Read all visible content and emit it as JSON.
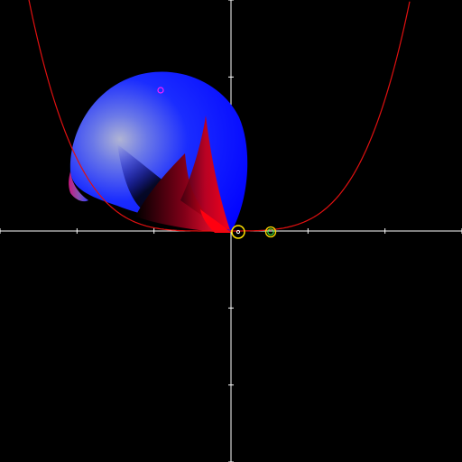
{
  "colors": {
    "background": "#000000",
    "axes": "#ffffff",
    "curve": "#e01010",
    "shape_red": "#ff0010",
    "shape_blue": "#0000ff",
    "shape_light": "#9aa0c8",
    "shape_dark": "#000000",
    "shape_magenta": "#c81880",
    "marker_magenta": "#ff20ff",
    "marker_yellow": "#ffe000",
    "marker_green": "#40ff40",
    "marker_white": "#ffffff"
  },
  "icons": {
    "control_point_upper": "magenta-ring-marker",
    "control_point_origin": "yellow-ring-marker",
    "control_point_right": "yellow-green-ring-marker"
  }
}
